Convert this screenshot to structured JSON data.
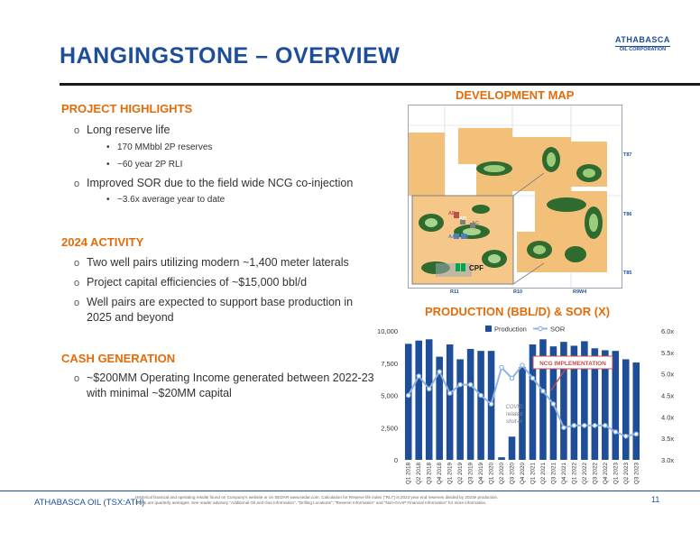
{
  "header": {
    "title": "HANGINGSTONE – OVERVIEW",
    "logo_line1": "ATHABASCA",
    "logo_line2": "OIL CORPORATION"
  },
  "project_highlights": {
    "heading": "PROJECT HIGHLIGHTS",
    "items": [
      {
        "text": "Long reserve life",
        "subs": [
          "170 MMbbl 2P reserves",
          "~60 year 2P RLI"
        ]
      },
      {
        "text": "Improved SOR due to the field wide NCG co-injection",
        "subs": [
          "~3.6x average year to date"
        ]
      }
    ]
  },
  "activity": {
    "heading": "2024 ACTIVITY",
    "items": [
      "Two well pairs utilizing modern ~1,400 meter laterals",
      "Project capital efficiencies of ~$15,000 bbl/d",
      "Well pairs are expected to support base production in",
      "2025 and beyond"
    ]
  },
  "cash": {
    "heading": "CASH GENERATION",
    "line1": "~$200MM Operating Income generated between 2022-23",
    "line2": "with minimal ~$20MM capital"
  },
  "map": {
    "title": "DEVELOPMENT MAP",
    "labels": {
      "ae": "AE",
      "ad": "AD",
      "ac": "AC",
      "aa": "AA",
      "ab": "AB",
      "cpf": "CPF",
      "t87": "T87",
      "t86": "T86",
      "t85": "T85",
      "r11": "R11",
      "r10": "R10",
      "r9w4": "R9W4"
    }
  },
  "chart_data": {
    "type": "bar",
    "title": "PRODUCTION (BBL/D) & SOR (X)",
    "categories": [
      "Q1 2018",
      "Q2 2018",
      "Q3 2018",
      "Q4 2018",
      "Q1 2019",
      "Q2 2019",
      "Q3 2019",
      "Q4 2019",
      "Q1 2020",
      "Q2 2020",
      "Q3 2020",
      "Q4 2020",
      "Q1 2021",
      "Q2 2021",
      "Q3 2021",
      "Q4 2021",
      "Q1 2022",
      "Q2 2022",
      "Q3 2022",
      "Q4 2022",
      "Q1 2023",
      "Q2 2023",
      "Q3 2023"
    ],
    "series": [
      {
        "name": "Production",
        "axis": "left",
        "color": "#1f4e99",
        "values": [
          9000,
          9250,
          9350,
          8000,
          8950,
          7800,
          8600,
          8450,
          8450,
          200,
          1800,
          7200,
          8950,
          9350,
          8800,
          9150,
          8850,
          9200,
          8650,
          8500,
          8450,
          7800,
          7550
        ]
      },
      {
        "name": "SOR",
        "axis": "right",
        "color": "#8eb4e3",
        "values": [
          4.5,
          4.95,
          4.65,
          5.05,
          4.55,
          4.75,
          4.75,
          4.5,
          4.3,
          5.15,
          4.9,
          5.2,
          4.9,
          4.6,
          4.3,
          3.75,
          3.8,
          3.8,
          3.8,
          3.8,
          3.65,
          3.55,
          3.6
        ]
      }
    ],
    "y_left": {
      "min": 0,
      "max": 10000,
      "ticks": [
        "0",
        "2,500",
        "5,000",
        "7,500",
        "10,000"
      ]
    },
    "y_right": {
      "min": 3.0,
      "max": 6.0,
      "ticks": [
        "3.0x",
        "3.5x",
        "4.0x",
        "4.5x",
        "5.0x",
        "5.5x",
        "6.0x"
      ]
    },
    "legend": {
      "position": "top",
      "production": "Production",
      "sor": "SOR"
    },
    "annotations": {
      "covid": [
        "COVID",
        "related",
        "shut-in"
      ],
      "ncg": "NCG IMPLEMENTATION"
    }
  },
  "footer": {
    "left": "ATHABASCA OIL (TSX:ATH)",
    "note1": "Historical financial and operating results found on Company's website or on SEDAR www.sedar.com. Calculation for Reserve life index (\"RLI\") is 2023 year end reserves divided by 2023e production.",
    "note2": "SORs are quarterly averages. See reader advisory \"Additional Oil and Gas Information\", \"Drilling Locations\", \"Reserve Information\" and \"Non-GAAP Financial Information\" for more information.",
    "page": "11"
  }
}
